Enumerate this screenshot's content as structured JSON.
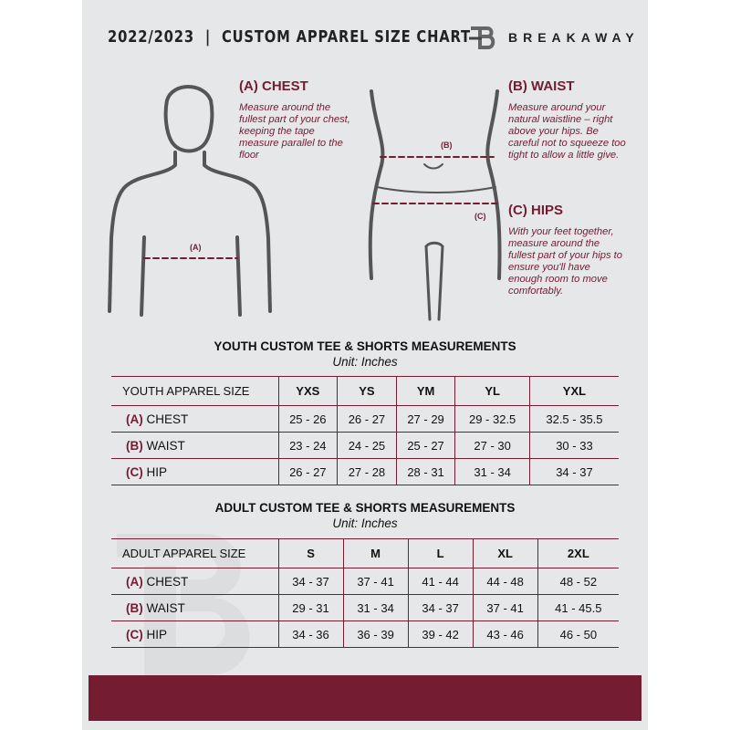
{
  "header": {
    "title": "2022/2023  |  CUSTOM APPAREL SIZE CHART",
    "brand": "BREAKAWAY"
  },
  "guides": [
    {
      "title": "(A) CHEST",
      "desc": "Measure around the fullest part of your chest, keeping the tape measure parallel to the floor",
      "marker": "(A)"
    },
    {
      "title": "(B) WAIST",
      "desc": "Measure around your natural waistline – right above your hips. Be careful not to squeeze too tight to allow a little give.",
      "marker": "(B)"
    },
    {
      "title": "(C) HIPS",
      "desc": "With your feet together, measure around the fullest part of your hips to ensure you'll have enough room to move comfortably.",
      "marker": "(C)"
    }
  ],
  "colors": {
    "accent": "#731c32",
    "background": "#e6e7e9"
  },
  "youth": {
    "title": "YOUTH CUSTOM TEE & SHORTS MEASUREMENTS",
    "unit": "Unit: Inches",
    "header": [
      "YOUTH APPAREL SIZE",
      "YXS",
      "YS",
      "YM",
      "YL",
      "YXL"
    ],
    "rows": [
      {
        "code": "(A)",
        "label": "CHEST",
        "values": [
          "25 - 26",
          "26 - 27",
          "27 - 29",
          "29 - 32.5",
          "32.5 - 35.5"
        ]
      },
      {
        "code": "(B)",
        "label": "WAIST",
        "values": [
          "23 - 24",
          "24 - 25",
          "25 - 27",
          "27 - 30",
          "30 - 33"
        ]
      },
      {
        "code": "(C)",
        "label": "HIP",
        "values": [
          "26 - 27",
          "27 - 28",
          "28 - 31",
          "31 - 34",
          "34 - 37"
        ]
      }
    ]
  },
  "adult": {
    "title": "ADULT CUSTOM TEE & SHORTS MEASUREMENTS",
    "unit": "Unit: Inches",
    "header": [
      "ADULT APPAREL SIZE",
      "S",
      "M",
      "L",
      "XL",
      "2XL"
    ],
    "rows": [
      {
        "code": "(A)",
        "label": "CHEST",
        "values": [
          "34 - 37",
          "37 - 41",
          "41 - 44",
          "44 - 48",
          "48 - 52"
        ]
      },
      {
        "code": "(B)",
        "label": "WAIST",
        "values": [
          "29 - 31",
          "31 - 34",
          "34 - 37",
          "37 - 41",
          "41 - 45.5"
        ]
      },
      {
        "code": "(C)",
        "label": "HIP",
        "values": [
          "34 - 36",
          "36 - 39",
          "39 - 42",
          "43 - 46",
          "46 - 50"
        ]
      }
    ]
  }
}
